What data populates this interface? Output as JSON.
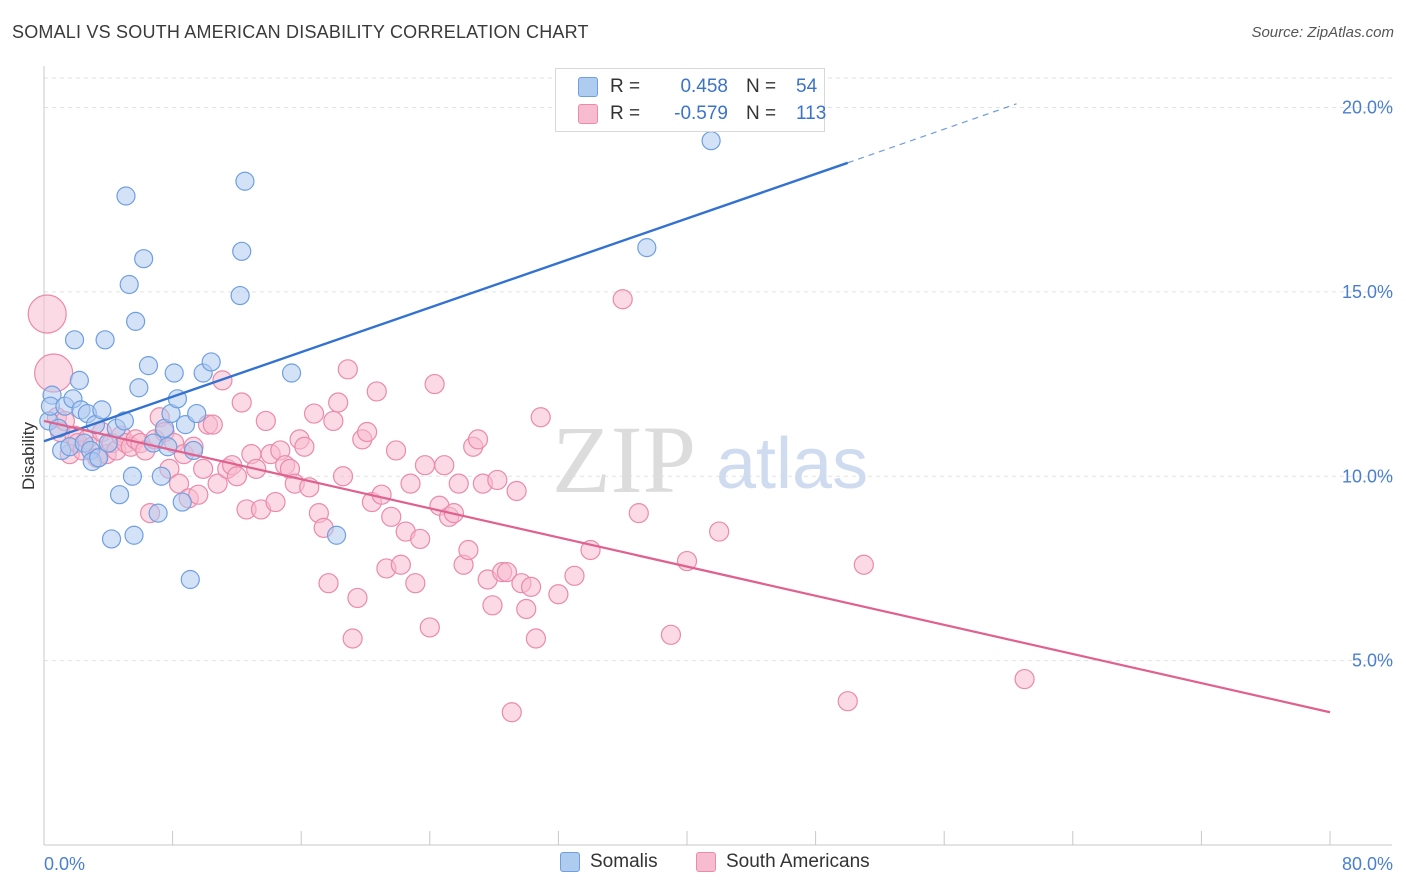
{
  "header": {
    "title": "SOMALI VS SOUTH AMERICAN DISABILITY CORRELATION CHART",
    "source": "Source: ZipAtlas.com"
  },
  "legend": {
    "somali": {
      "r_label": "R =",
      "r_value": "0.458",
      "n_label": "N =",
      "n_value": "54"
    },
    "south_american": {
      "r_label": "R =",
      "r_value": "-0.579",
      "n_label": "N =",
      "n_value": "113"
    }
  },
  "bottom_legend": {
    "somali": "Somalis",
    "south_american": "South Americans"
  },
  "watermark": {
    "zip": "ZIP",
    "atlas": "atlas"
  },
  "colors": {
    "somali_fill": "#aecbf0",
    "somali_stroke": "#6f9fe0",
    "somali_line": "#3372d0",
    "sa_fill": "#f7bcd0",
    "sa_stroke": "#eb8aab",
    "sa_line": "#e0608e",
    "tick_text": "#4a7fd0",
    "grid": "#e2e2e2"
  },
  "chart_data": {
    "type": "scatter",
    "title": "SOMALI VS SOUTH AMERICAN DISABILITY CORRELATION CHART",
    "xlabel": "",
    "ylabel": "Disability",
    "xlim": [
      0,
      80
    ],
    "ylim": [
      0,
      20.8
    ],
    "x_tick_labels": [
      {
        "value": 0,
        "label": "0.0%"
      },
      {
        "value": 80,
        "label": "80.0%"
      }
    ],
    "y_tick_labels": [
      {
        "value": 5,
        "label": "5.0%"
      },
      {
        "value": 10,
        "label": "10.0%"
      },
      {
        "value": 15,
        "label": "15.0%"
      },
      {
        "value": 20,
        "label": "20.0%"
      }
    ],
    "grid": "horizontal dashed",
    "legend_position": "top-center",
    "series": [
      {
        "name": "Somalis",
        "r": 0.458,
        "n": 54,
        "trend": {
          "x": [
            0,
            50
          ],
          "y": [
            10.95,
            18.5
          ],
          "dashed_to": [
            60.5,
            20.1
          ]
        },
        "points": [
          [
            0.3,
            11.5
          ],
          [
            0.5,
            12.2
          ],
          [
            0.4,
            11.9
          ],
          [
            0.9,
            11.3
          ],
          [
            1.1,
            10.7
          ],
          [
            1.3,
            11.9
          ],
          [
            1.6,
            10.8
          ],
          [
            1.8,
            12.1
          ],
          [
            1.9,
            13.7
          ],
          [
            2.2,
            12.6
          ],
          [
            2.3,
            11.8
          ],
          [
            2.5,
            10.9
          ],
          [
            2.7,
            11.7
          ],
          [
            2.9,
            10.7
          ],
          [
            3.0,
            10.4
          ],
          [
            3.2,
            11.4
          ],
          [
            3.4,
            10.5
          ],
          [
            3.6,
            11.8
          ],
          [
            3.8,
            13.7
          ],
          [
            4.0,
            10.9
          ],
          [
            4.2,
            8.3
          ],
          [
            4.5,
            11.3
          ],
          [
            4.7,
            9.5
          ],
          [
            5.0,
            11.5
          ],
          [
            5.1,
            17.6
          ],
          [
            5.3,
            15.2
          ],
          [
            5.5,
            10.0
          ],
          [
            5.6,
            8.4
          ],
          [
            5.7,
            14.2
          ],
          [
            5.9,
            12.4
          ],
          [
            6.2,
            15.9
          ],
          [
            6.5,
            13.0
          ],
          [
            6.8,
            10.9
          ],
          [
            7.1,
            9.0
          ],
          [
            7.3,
            10.0
          ],
          [
            7.5,
            11.3
          ],
          [
            7.7,
            10.8
          ],
          [
            7.9,
            11.7
          ],
          [
            8.1,
            12.8
          ],
          [
            8.3,
            12.1
          ],
          [
            8.6,
            9.3
          ],
          [
            8.8,
            11.4
          ],
          [
            9.1,
            7.2
          ],
          [
            9.3,
            10.7
          ],
          [
            9.5,
            11.7
          ],
          [
            9.9,
            12.8
          ],
          [
            10.4,
            13.1
          ],
          [
            12.2,
            14.9
          ],
          [
            12.3,
            16.1
          ],
          [
            12.5,
            18.0
          ],
          [
            15.4,
            12.8
          ],
          [
            18.2,
            8.4
          ],
          [
            37.5,
            16.2
          ],
          [
            41.5,
            19.1
          ]
        ]
      },
      {
        "name": "South Americans",
        "r": -0.579,
        "n": 113,
        "trend": {
          "x": [
            0,
            80
          ],
          "y": [
            11.5,
            3.6
          ]
        },
        "points": [
          [
            0.2,
            14.4
          ],
          [
            0.6,
            12.8
          ],
          [
            0.8,
            11.6
          ],
          [
            1.0,
            11.2
          ],
          [
            1.3,
            11.5
          ],
          [
            1.6,
            10.6
          ],
          [
            1.9,
            11.1
          ],
          [
            2.1,
            10.9
          ],
          [
            2.4,
            10.7
          ],
          [
            2.7,
            11.0
          ],
          [
            3.0,
            10.8
          ],
          [
            3.3,
            10.5
          ],
          [
            3.6,
            11.2
          ],
          [
            3.9,
            10.6
          ],
          [
            4.2,
            10.9
          ],
          [
            4.5,
            10.7
          ],
          [
            4.8,
            11.1
          ],
          [
            5.1,
            10.9
          ],
          [
            5.4,
            10.8
          ],
          [
            5.7,
            11.0
          ],
          [
            6.0,
            10.9
          ],
          [
            6.3,
            10.7
          ],
          [
            6.6,
            9.0
          ],
          [
            6.9,
            11.0
          ],
          [
            7.2,
            11.6
          ],
          [
            7.5,
            11.2
          ],
          [
            7.8,
            10.2
          ],
          [
            8.1,
            10.9
          ],
          [
            8.4,
            9.8
          ],
          [
            8.7,
            10.6
          ],
          [
            9.0,
            9.4
          ],
          [
            9.3,
            10.8
          ],
          [
            9.6,
            9.5
          ],
          [
            9.9,
            10.2
          ],
          [
            10.2,
            11.4
          ],
          [
            10.5,
            11.4
          ],
          [
            10.8,
            9.8
          ],
          [
            11.1,
            12.6
          ],
          [
            11.4,
            10.2
          ],
          [
            11.7,
            10.3
          ],
          [
            12.0,
            10.0
          ],
          [
            12.3,
            12.0
          ],
          [
            12.6,
            9.1
          ],
          [
            12.9,
            10.6
          ],
          [
            13.2,
            10.2
          ],
          [
            13.5,
            9.1
          ],
          [
            13.8,
            11.5
          ],
          [
            14.1,
            10.6
          ],
          [
            14.4,
            9.3
          ],
          [
            14.7,
            10.7
          ],
          [
            15.0,
            10.3
          ],
          [
            15.3,
            10.2
          ],
          [
            15.6,
            9.8
          ],
          [
            15.9,
            11.0
          ],
          [
            16.2,
            10.8
          ],
          [
            16.5,
            9.7
          ],
          [
            16.8,
            11.7
          ],
          [
            17.1,
            9.0
          ],
          [
            17.4,
            8.6
          ],
          [
            17.7,
            7.1
          ],
          [
            18.0,
            11.5
          ],
          [
            18.3,
            12.0
          ],
          [
            18.6,
            10.0
          ],
          [
            18.9,
            12.9
          ],
          [
            19.2,
            5.6
          ],
          [
            19.5,
            6.7
          ],
          [
            19.8,
            11.0
          ],
          [
            20.1,
            11.2
          ],
          [
            20.4,
            9.3
          ],
          [
            20.7,
            12.3
          ],
          [
            21.0,
            9.5
          ],
          [
            21.3,
            7.5
          ],
          [
            21.6,
            8.9
          ],
          [
            21.9,
            10.7
          ],
          [
            22.2,
            7.6
          ],
          [
            22.5,
            8.5
          ],
          [
            22.8,
            9.8
          ],
          [
            23.1,
            7.1
          ],
          [
            23.4,
            8.3
          ],
          [
            23.7,
            10.3
          ],
          [
            24.0,
            5.9
          ],
          [
            24.3,
            12.5
          ],
          [
            24.6,
            9.2
          ],
          [
            24.9,
            10.3
          ],
          [
            25.2,
            8.9
          ],
          [
            25.5,
            9.0
          ],
          [
            25.8,
            9.8
          ],
          [
            26.1,
            7.6
          ],
          [
            26.4,
            8.0
          ],
          [
            26.7,
            10.8
          ],
          [
            27.0,
            11.0
          ],
          [
            27.3,
            9.8
          ],
          [
            27.6,
            7.2
          ],
          [
            27.9,
            6.5
          ],
          [
            28.2,
            9.9
          ],
          [
            28.5,
            7.4
          ],
          [
            28.8,
            7.4
          ],
          [
            29.1,
            3.6
          ],
          [
            29.4,
            9.6
          ],
          [
            29.7,
            7.1
          ],
          [
            30.0,
            6.4
          ],
          [
            30.3,
            7.0
          ],
          [
            30.6,
            5.6
          ],
          [
            30.9,
            11.6
          ],
          [
            32.0,
            6.8
          ],
          [
            33.0,
            7.3
          ],
          [
            34.0,
            8.0
          ],
          [
            36.0,
            14.8
          ],
          [
            37.0,
            9.0
          ],
          [
            39.0,
            5.7
          ],
          [
            40.0,
            7.7
          ],
          [
            42.0,
            8.5
          ],
          [
            50.0,
            3.9
          ],
          [
            51.0,
            7.6
          ],
          [
            61.0,
            4.5
          ]
        ]
      }
    ]
  }
}
